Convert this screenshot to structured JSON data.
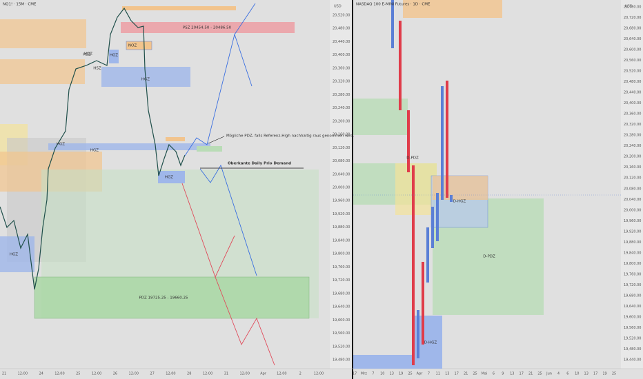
{
  "left_panel": {
    "title": "NQ1! · 15M · CME",
    "currency": "USD",
    "price_labels": [
      "20,520.00",
      "20,480.00",
      "20,440.00",
      "20,400.00",
      "20,360.00",
      "20,320.00",
      "20,280.00",
      "20,240.00",
      "20,200.00",
      "20,160.00",
      "20,120.00",
      "20,080.00",
      "20,040.00",
      "20,000.00",
      "19,960.00",
      "19,920.00",
      "19,880.00",
      "19,840.00",
      "19,800.00",
      "19,760.00",
      "19,720.00",
      "19,680.00",
      "19,640.00",
      "19,600.00",
      "19,560.00",
      "19,520.00",
      "19,480.00"
    ],
    "time_labels": [
      "21",
      "12:00",
      "24",
      "12:00",
      "25",
      "12:00",
      "26",
      "12:00",
      "27",
      "12:00",
      "28",
      "12:00",
      "31",
      "12:00",
      "Apr",
      "12:00",
      "2",
      "12:00"
    ],
    "zone_labels": [
      "PSZ 20454.50 - 20486.50",
      "NOZ",
      "HSZ",
      "HSZ",
      "HGZ",
      "HGZ",
      "HGZ",
      "HGZ",
      "HGZ",
      "HGZ",
      "HGZ",
      "PDZ 19725.25 - 19660.25"
    ],
    "annotations": [
      "Mögliche PDZ, falls Referenz-High nachhaltig raus genommen wird.",
      "Oberkante Daily Prio Demand"
    ]
  },
  "right_panel": {
    "title": "NASDAQ 100 E-MINI Futures · 1D · CME",
    "currency": "USD",
    "price_labels": [
      "20,760.00",
      "20,720.00",
      "20,680.00",
      "20,640.00",
      "20,600.00",
      "20,560.00",
      "20,520.00",
      "20,480.00",
      "20,440.00",
      "20,400.00",
      "20,360.00",
      "20,320.00",
      "20,280.00",
      "20,240.00",
      "20,200.00",
      "20,160.00",
      "20,120.00",
      "20,080.00",
      "20,040.00",
      "20,000.00",
      "19,960.00",
      "19,920.00",
      "19,880.00",
      "19,840.00",
      "19,800.00",
      "19,760.00",
      "19,720.00",
      "19,680.00",
      "19,640.00",
      "19,600.00",
      "19,560.00",
      "19,520.00",
      "19,480.00",
      "19,440.00"
    ],
    "time_labels": [
      "17",
      "Mrz",
      "7",
      "10",
      "13",
      "19",
      "25",
      "Apr",
      "7",
      "11",
      "13",
      "17",
      "21",
      "25",
      "Mai",
      "6",
      "9",
      "13",
      "17",
      "21",
      "25",
      "Jun",
      "4",
      "6",
      "10",
      "13",
      "17",
      "19",
      "25"
    ],
    "zone_labels": [
      "D-PDZ",
      "D-HGZ",
      "D-PDZ",
      "D-HGZ"
    ]
  }
}
